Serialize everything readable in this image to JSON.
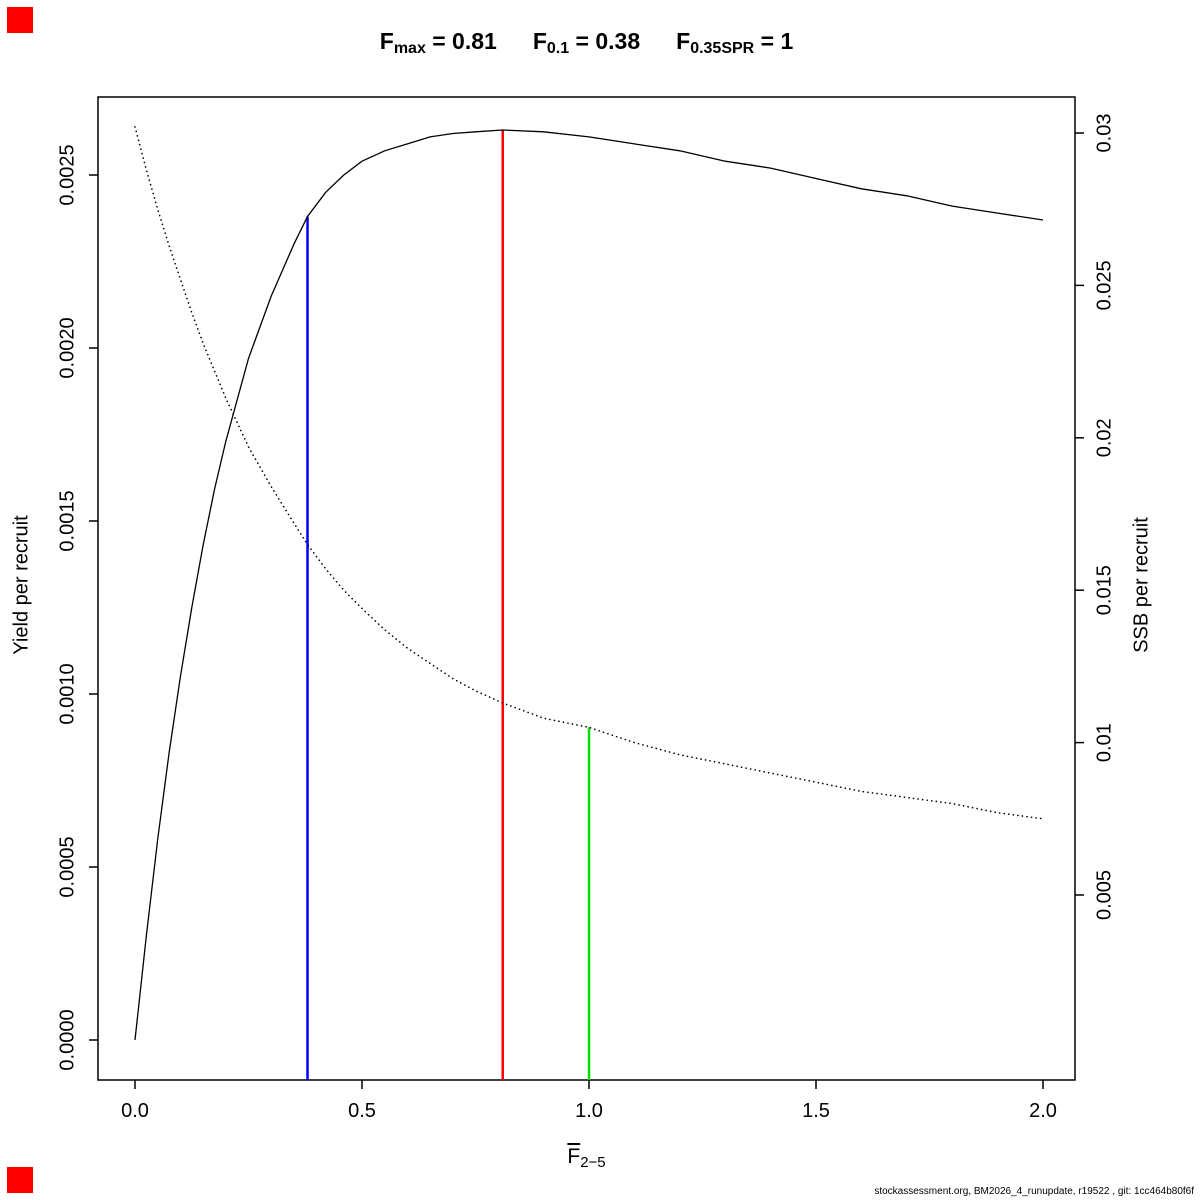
{
  "title": {
    "segments": [
      {
        "base": "F",
        "sub": "max",
        "rest": " = 0.81"
      },
      {
        "base": "F",
        "sub": "0.1",
        "rest": " = 0.38"
      },
      {
        "base": "F",
        "sub": "0.35SPR",
        "rest": " = 1"
      }
    ]
  },
  "axes": {
    "x": {
      "label_base": "F",
      "label_sub": "2−5"
    }
  },
  "footer": {
    "text": "stockassessment.org, BM2026_4_runupdate, r19522 , git: 1cc464b80f6f"
  },
  "markers": {
    "color": "#ff0000"
  },
  "chart_data": {
    "type": "line",
    "title": "Fmax = 0.81    F0.1 = 0.38    F0.35SPR = 1",
    "x_axis": {
      "label": "F̄2−5",
      "tick_values": [
        0,
        0.5,
        1,
        1.5,
        2
      ],
      "tick_labels": [
        "0.0",
        "0.5",
        "1.0",
        "1.5",
        "2.0"
      ],
      "range": [
        -0.08,
        2.07
      ]
    },
    "y_axis_left": {
      "label": "Yield per recruit",
      "tick_values": [
        0,
        0.0005,
        0.001,
        0.0015,
        0.002,
        0.0025
      ],
      "tick_labels": [
        "0.0000",
        "0.0005",
        "0.0010",
        "0.0015",
        "0.0020",
        "0.0025"
      ],
      "range": [
        -0.00012,
        0.00273
      ]
    },
    "y_axis_right": {
      "label": "SSB per recruit",
      "tick_values": [
        0.005,
        0.01,
        0.015,
        0.02,
        0.025,
        0.03
      ],
      "tick_labels": [
        "0.005",
        "0.01",
        "0.015",
        "0.02",
        "0.025",
        "0.03"
      ],
      "range": [
        -0.001,
        0.0312
      ]
    },
    "grid": false,
    "legend": null,
    "series": [
      {
        "name": "Yield per recruit",
        "axis": "left",
        "style": "solid",
        "color": "#000000",
        "x": [
          0,
          0.025,
          0.05,
          0.075,
          0.1,
          0.125,
          0.15,
          0.175,
          0.2,
          0.25,
          0.3,
          0.35,
          0.38,
          0.42,
          0.46,
          0.5,
          0.55,
          0.6,
          0.65,
          0.7,
          0.75,
          0.81,
          0.9,
          1,
          1.1,
          1.2,
          1.3,
          1.4,
          1.5,
          1.6,
          1.7,
          1.8,
          1.9,
          2
        ],
        "y": [
          0,
          0.0003,
          0.00058,
          0.00083,
          0.00105,
          0.00125,
          0.00143,
          0.00159,
          0.00173,
          0.00197,
          0.00215,
          0.0023,
          0.00238,
          0.00245,
          0.0025,
          0.00254,
          0.00257,
          0.00259,
          0.00261,
          0.00262,
          0.002625,
          0.00263,
          0.002625,
          0.00261,
          0.00259,
          0.00257,
          0.00254,
          0.00252,
          0.00249,
          0.00246,
          0.00244,
          0.00241,
          0.00239,
          0.00237
        ]
      },
      {
        "name": "SSB per recruit",
        "axis": "right",
        "style": "dotted",
        "color": "#000000",
        "x": [
          0,
          0.025,
          0.05,
          0.075,
          0.1,
          0.125,
          0.15,
          0.175,
          0.2,
          0.25,
          0.3,
          0.35,
          0.38,
          0.42,
          0.46,
          0.5,
          0.55,
          0.6,
          0.65,
          0.7,
          0.75,
          0.81,
          0.9,
          1,
          1.1,
          1.2,
          1.3,
          1.4,
          1.5,
          1.6,
          1.7,
          1.8,
          1.9,
          2
        ],
        "y": [
          0.0302,
          0.0288,
          0.0275,
          0.0263,
          0.0252,
          0.0241,
          0.0231,
          0.0222,
          0.0213,
          0.0197,
          0.0184,
          0.0172,
          0.0165,
          0.0157,
          0.015,
          0.0144,
          0.0137,
          0.0131,
          0.0126,
          0.0121,
          0.0117,
          0.0113,
          0.0108,
          0.0105,
          0.01,
          0.0096,
          0.0093,
          0.009,
          0.0087,
          0.0084,
          0.0082,
          0.008,
          0.0077,
          0.0075
        ]
      }
    ],
    "reference_lines": [
      {
        "name": "F0.1",
        "x": 0.38,
        "color": "#0000ff",
        "top": 0.00238,
        "top_axis": "left"
      },
      {
        "name": "Fmax",
        "x": 0.81,
        "color": "#ff0000",
        "top": 0.00263,
        "top_axis": "left"
      },
      {
        "name": "F0.35SPR",
        "x": 1,
        "color": "#00e000",
        "top": 0.0105,
        "top_axis": "right"
      }
    ]
  }
}
